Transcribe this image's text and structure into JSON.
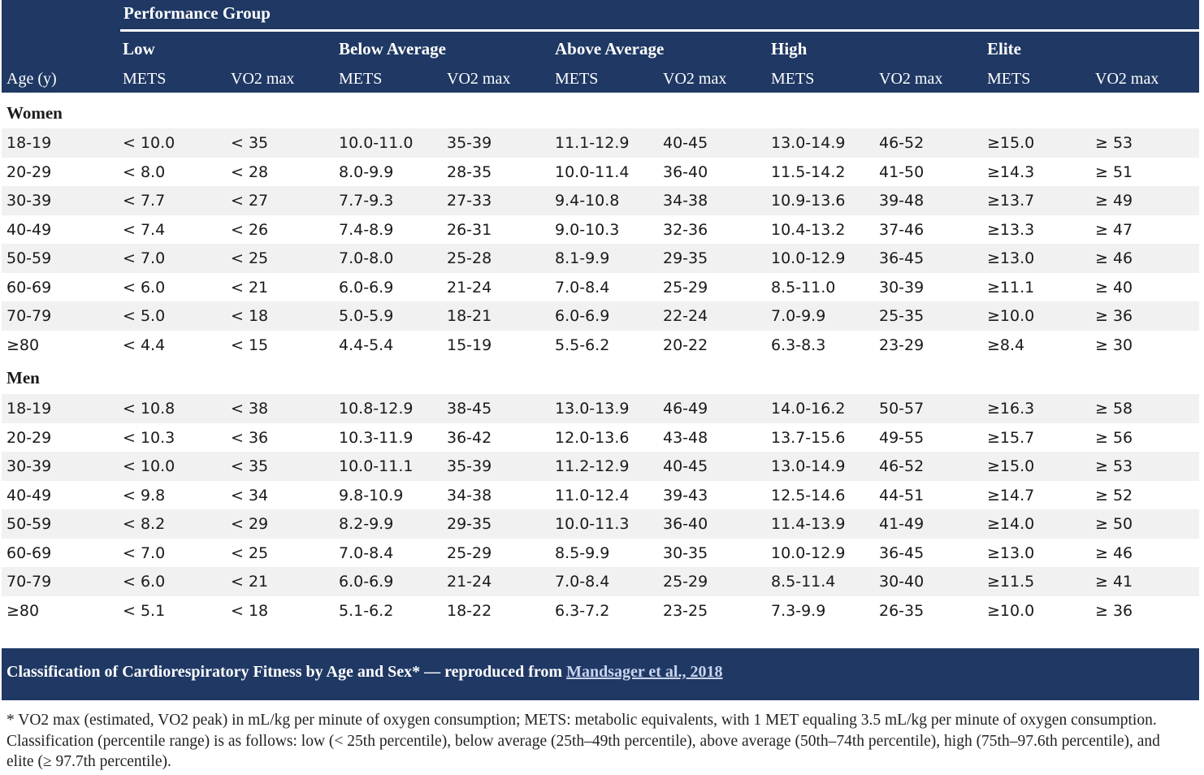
{
  "header": {
    "performance_group": "Performance Group",
    "age_label": "Age (y)",
    "groups": [
      "Low",
      "Below Average",
      "Above Average",
      "High",
      "Elite"
    ],
    "mets_label": "METS",
    "vo2_label": "VO2 max"
  },
  "women": {
    "label": "Women",
    "rows": [
      [
        "18-19",
        "< 10.0",
        "< 35",
        "10.0-11.0",
        "35-39",
        "11.1-12.9",
        "40-45",
        "13.0-14.9",
        "46-52",
        "≥15.0",
        "≥ 53"
      ],
      [
        "20-29",
        "< 8.0",
        "< 28",
        "8.0-9.9",
        "28-35",
        "10.0-11.4",
        "36-40",
        "11.5-14.2",
        "41-50",
        "≥14.3",
        "≥ 51"
      ],
      [
        "30-39",
        "< 7.7",
        "< 27",
        "7.7-9.3",
        "27-33",
        "9.4-10.8",
        "34-38",
        "10.9-13.6",
        "39-48",
        "≥13.7",
        "≥ 49"
      ],
      [
        "40-49",
        "< 7.4",
        "< 26",
        "7.4-8.9",
        "26-31",
        "9.0-10.3",
        "32-36",
        "10.4-13.2",
        "37-46",
        "≥13.3",
        "≥ 47"
      ],
      [
        "50-59",
        "< 7.0",
        "< 25",
        "7.0-8.0",
        "25-28",
        "8.1-9.9",
        "29-35",
        "10.0-12.9",
        "36-45",
        "≥13.0",
        "≥ 46"
      ],
      [
        "60-69",
        "< 6.0",
        "< 21",
        "6.0-6.9",
        "21-24",
        "7.0-8.4",
        "25-29",
        "8.5-11.0",
        "30-39",
        "≥11.1",
        "≥ 40"
      ],
      [
        "70-79",
        "< 5.0",
        "< 18",
        "5.0-5.9",
        "18-21",
        "6.0-6.9",
        "22-24",
        "7.0-9.9",
        "25-35",
        "≥10.0",
        "≥ 36"
      ],
      [
        "≥80",
        "< 4.4",
        "< 15",
        "4.4-5.4",
        "15-19",
        "5.5-6.2",
        "20-22",
        "6.3-8.3",
        "23-29",
        "≥8.4",
        "≥ 30"
      ]
    ]
  },
  "men": {
    "label": "Men",
    "rows": [
      [
        "18-19",
        "< 10.8",
        "< 38",
        "10.8-12.9",
        "38-45",
        "13.0-13.9",
        "46-49",
        "14.0-16.2",
        "50-57",
        "≥16.3",
        "≥ 58"
      ],
      [
        "20-29",
        "< 10.3",
        "< 36",
        "10.3-11.9",
        "36-42",
        "12.0-13.6",
        "43-48",
        "13.7-15.6",
        "49-55",
        "≥15.7",
        "≥ 56"
      ],
      [
        "30-39",
        "< 10.0",
        "< 35",
        "10.0-11.1",
        "35-39",
        "11.2-12.9",
        "40-45",
        "13.0-14.9",
        "46-52",
        "≥15.0",
        "≥ 53"
      ],
      [
        "40-49",
        "< 9.8",
        "< 34",
        "9.8-10.9",
        "34-38",
        "11.0-12.4",
        "39-43",
        "12.5-14.6",
        "44-51",
        "≥14.7",
        "≥ 52"
      ],
      [
        "50-59",
        "< 8.2",
        "< 29",
        "8.2-9.9",
        "29-35",
        "10.0-11.3",
        "36-40",
        "11.4-13.9",
        "41-49",
        "≥14.0",
        "≥ 50"
      ],
      [
        "60-69",
        "< 7.0",
        "< 25",
        "7.0-8.4",
        "25-29",
        "8.5-9.9",
        "30-35",
        "10.0-12.9",
        "36-45",
        "≥13.0",
        "≥ 46"
      ],
      [
        "70-79",
        "< 6.0",
        "< 21",
        "6.0-6.9",
        "21-24",
        "7.0-8.4",
        "25-29",
        "8.5-11.4",
        "30-40",
        "≥11.5",
        "≥ 41"
      ],
      [
        "≥80",
        "< 5.1",
        "< 18",
        "5.1-6.2",
        "18-22",
        "6.3-7.2",
        "23-25",
        "7.3-9.9",
        "26-35",
        "≥10.0",
        "≥ 36"
      ]
    ]
  },
  "caption": {
    "text": "Classification of Cardiorespiratory Fitness by Age and Sex* — reproduced from ",
    "link": "Mandsager et al., 2018"
  },
  "footnote": "* VO2 max (estimated, VO2 peak) in mL/kg per minute of oxygen consumption; METS: metabolic equivalents, with 1 MET equaling 3.5 mL/kg per minute of oxygen consumption. Classification (percentile range) is as follows: low (< 25th percentile), below average (25th–49th percentile), above average (50th–74th percentile), high (75th–97.6th percentile), and elite (≥ 97.7th percentile).",
  "colors": {
    "header_bg": "#1f3864",
    "row_shade": "#f1f1f1",
    "link": "#c9d4ee"
  }
}
